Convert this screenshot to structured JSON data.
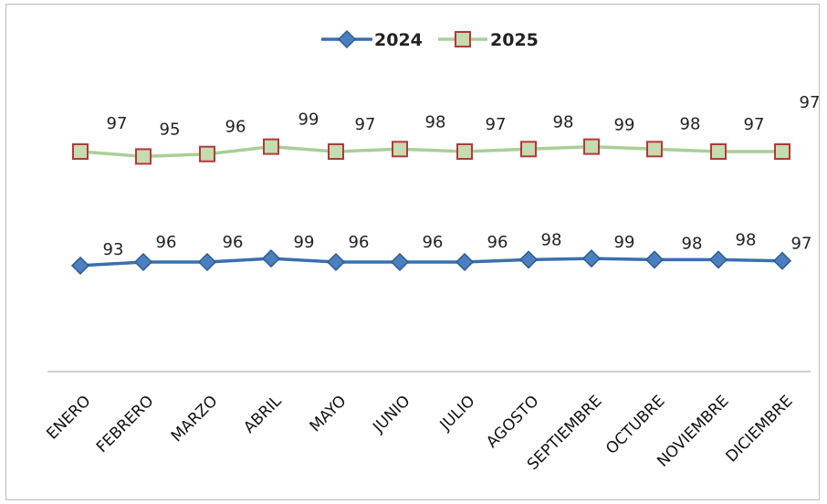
{
  "chart_data": {
    "type": "line",
    "categories": [
      "ENERO",
      "FEBRERO",
      "MARZO",
      "ABRIL",
      "MAYO",
      "JUNIO",
      "JULIO",
      "AGOSTO",
      "SEPTIEMBRE",
      "OCTUBRE",
      "NOVIEMBRE",
      "DICIEMBRE"
    ],
    "series": [
      {
        "name": "2024",
        "values": [
          93,
          96,
          96,
          99,
          96,
          96,
          96,
          98,
          99,
          98,
          98,
          97
        ],
        "color": "#3a6fb0",
        "marker": "diamond"
      },
      {
        "name": "2025",
        "values": [
          97,
          95,
          96,
          99,
          97,
          98,
          97,
          98,
          99,
          98,
          97,
          97
        ],
        "color": "#a9cf95",
        "marker": "square",
        "marker_fill": "#c5dbb0",
        "marker_edge": "#b03a3a"
      }
    ],
    "title": "",
    "xlabel": "",
    "ylabel": "",
    "legend": "top-center",
    "grid": false
  }
}
